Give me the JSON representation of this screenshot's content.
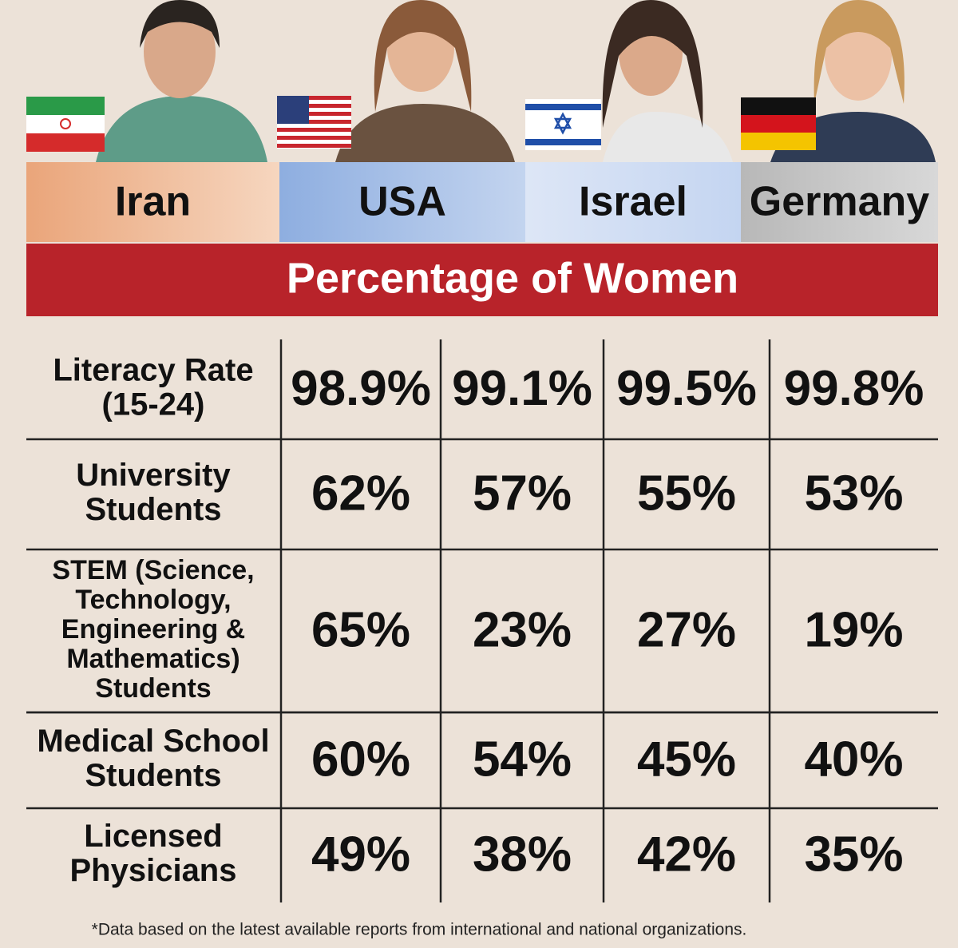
{
  "header": {
    "countries": [
      "Iran",
      "USA",
      "Israel",
      "Germany"
    ],
    "banner": "Percentage of Women"
  },
  "table": {
    "rows": [
      {
        "label": [
          "Literacy Rate",
          "(15-24)"
        ],
        "values": [
          "98.9%",
          "99.1%",
          "99.5%",
          "99.8%"
        ]
      },
      {
        "label": [
          "University",
          "Students"
        ],
        "values": [
          "62%",
          "57%",
          "55%",
          "53%"
        ]
      },
      {
        "label": [
          "STEM (Science,",
          "Technology,",
          "Engineering &",
          "Mathematics)",
          "Students"
        ],
        "values": [
          "65%",
          "23%",
          "27%",
          "19%"
        ]
      },
      {
        "label": [
          "Medical School",
          "Students"
        ],
        "values": [
          "60%",
          "54%",
          "45%",
          "40%"
        ]
      },
      {
        "label": [
          "Licensed",
          "Physicians"
        ],
        "values": [
          "49%",
          "38%",
          "42%",
          "35%"
        ]
      }
    ]
  },
  "footnote": "*Data based on the latest available reports from international and national organizations."
}
